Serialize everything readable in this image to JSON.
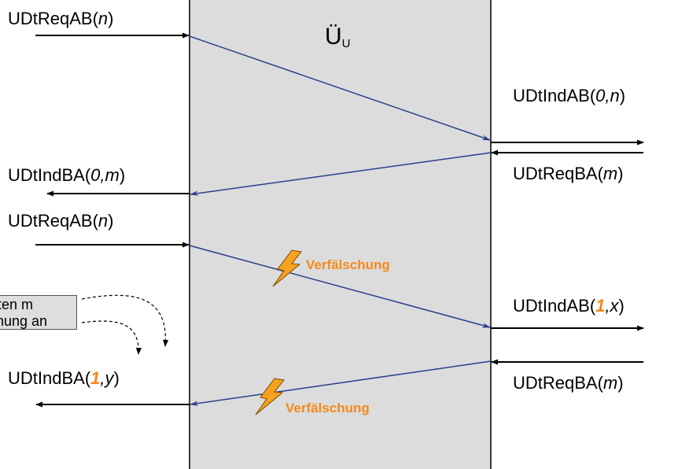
{
  "box": {
    "title": "Ü",
    "title_sub": "U",
    "fill": "#dcdcdc"
  },
  "colors": {
    "signal_line": "#2a3f8c",
    "highlight": "#f28a1b"
  },
  "left_labels": [
    {
      "id": "req1",
      "name": "UDtReqAB",
      "args": "n"
    },
    {
      "id": "ind1",
      "name": "UDtIndBA",
      "args": "0,m"
    },
    {
      "id": "req2",
      "name": "UDtReqAB",
      "args": "n"
    },
    {
      "id": "ind2",
      "name": "UDtIndBA",
      "hl": "1",
      "rest": ",y"
    }
  ],
  "right_labels": [
    {
      "id": "ind1",
      "name": "UDtIndAB",
      "args": "0,n"
    },
    {
      "id": "req1",
      "name": "UDtReqBA",
      "args": "m"
    },
    {
      "id": "ind2",
      "name": "UDtIndAB",
      "hl": "1",
      "rest": ",x"
    },
    {
      "id": "req2",
      "name": "UDtReqBA",
      "args": "m"
    }
  ],
  "errors": [
    "Verfälschung",
    "Verfälschung"
  ],
  "note": {
    "line1": "ten m",
    "line2": "hung an"
  },
  "icons": [
    "lightning-icon",
    "lightning-icon"
  ]
}
